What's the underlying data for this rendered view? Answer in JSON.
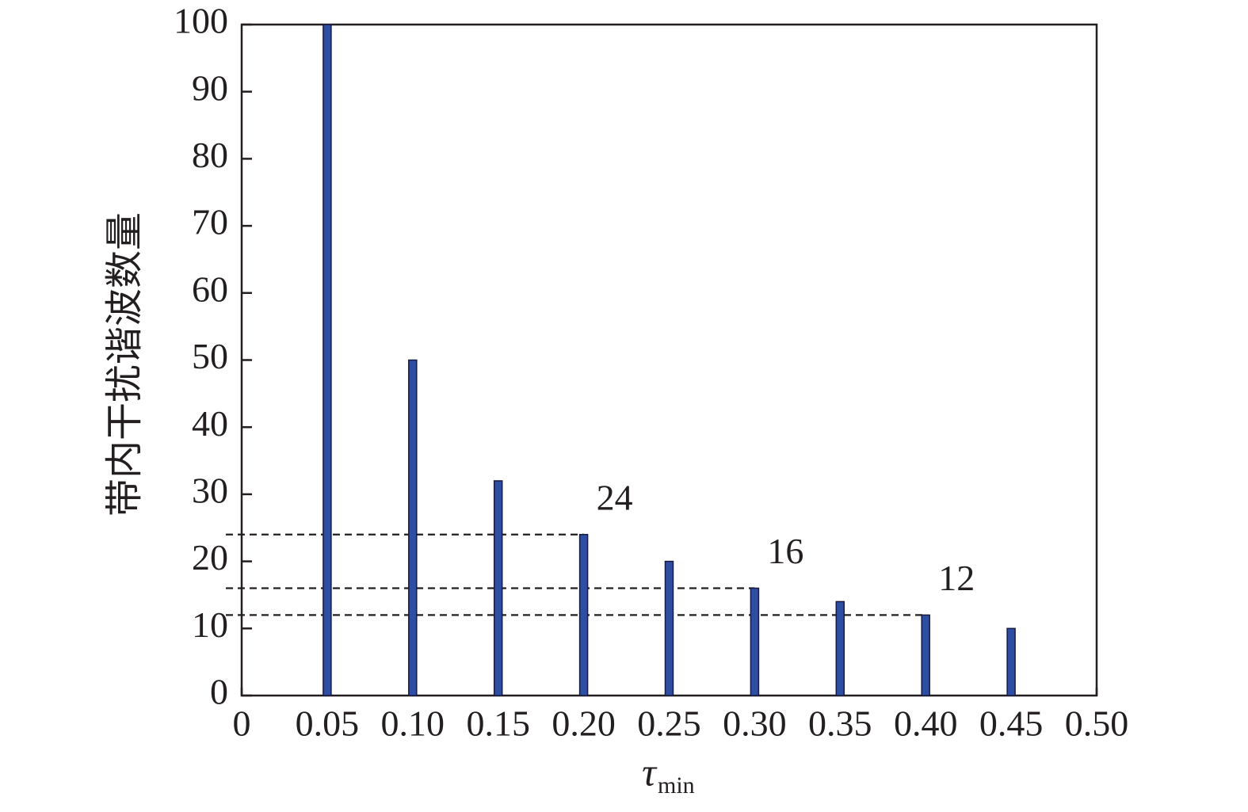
{
  "chart_data": {
    "type": "bar",
    "y_label": "带内干扰谐波数量",
    "x_label": {
      "symbol": "τ",
      "subscript": "min"
    },
    "x": [
      0.05,
      0.1,
      0.15,
      0.2,
      0.25,
      0.3,
      0.35,
      0.4,
      0.45
    ],
    "values": [
      100,
      50,
      32,
      24,
      20,
      16,
      14,
      12,
      10
    ],
    "color": "#2e4ea3",
    "xlim": [
      0,
      0.5
    ],
    "xticks": [
      0,
      0.05,
      {
        "value": 0.1,
        "label": "0.10"
      },
      0.15,
      {
        "value": 0.2,
        "label": "0.20"
      },
      0.25,
      {
        "value": 0.3,
        "label": "0.30"
      },
      0.35,
      {
        "value": 0.4,
        "label": "0.40"
      },
      0.45,
      {
        "value": 0.5,
        "label": "0.50"
      }
    ],
    "ylim": [
      0,
      100
    ],
    "yticks": [
      0,
      10,
      20,
      30,
      40,
      50,
      60,
      70,
      80,
      90,
      100
    ],
    "reference_lines": [
      {
        "y": 24,
        "x": 0.2
      },
      {
        "y": 16,
        "x": 0.3
      },
      {
        "y": 12,
        "x": 0.4
      }
    ]
  }
}
